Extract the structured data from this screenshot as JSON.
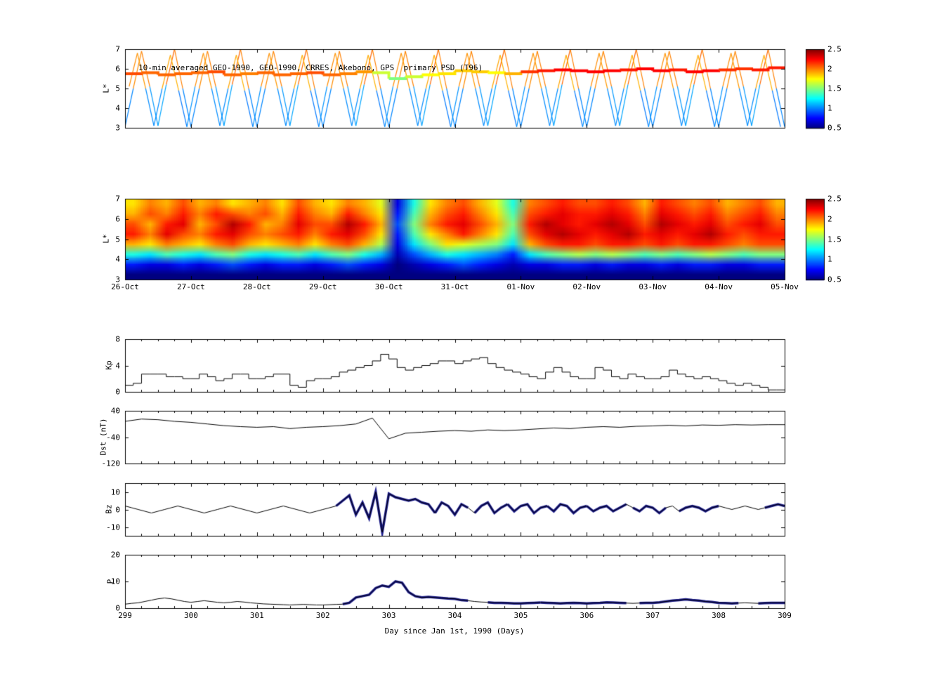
{
  "colors": {
    "axis": "#000000",
    "line": "#000000",
    "thick_line": "#1a1a8c",
    "background": "#ffffff"
  },
  "colorbar": {
    "ticks": [
      2.5,
      2,
      1.5,
      1,
      0.5
    ]
  },
  "xaxis": {
    "ticks": [
      299,
      300,
      301,
      302,
      303,
      304,
      305,
      306,
      307,
      308,
      309
    ],
    "label": "Day since Jan 1st, 1990 (Days)"
  },
  "chart_data": [
    {
      "id": "psd-track",
      "type": "line-colored",
      "title": "10-min averaged GEO-1990, GEO-1990, CRRES, Akebono, GPS  primary PSD (T96)",
      "ylabel": "L*",
      "xlim": [
        299,
        309
      ],
      "ylim": [
        3,
        7
      ],
      "yticks": [
        3,
        4,
        5,
        6,
        7
      ],
      "color_range": [
        0.5,
        2.5
      ],
      "series": [
        {
          "name": "orbit-track-1",
          "x0": 299,
          "dt": 0.125,
          "l": [
            3.05,
            5,
            6.9,
            5.1,
            3.1,
            5.2,
            7,
            5,
            3.05,
            5,
            6.9,
            5.1,
            3.1,
            5.2,
            7,
            5,
            3.05,
            5,
            6.9,
            5.1,
            3.1,
            5.2,
            7,
            5,
            3.05,
            5,
            6.9,
            5.1,
            3.1,
            5.2,
            7,
            5,
            3.05,
            5,
            6.9,
            5.1,
            3.1,
            5.2,
            7,
            5,
            3.05,
            5,
            6.9,
            5.1,
            3.1,
            5.2,
            7,
            5,
            3.05,
            5,
            6.9,
            5.1,
            3.1,
            5.2,
            7,
            5,
            3.05,
            5,
            6.9,
            5.1,
            3.1,
            5.2,
            7,
            5,
            3.05,
            5,
            6.9,
            5.1,
            3.1,
            5.2,
            7,
            5,
            3.05,
            5,
            6.9,
            5.1,
            3.1,
            5.2,
            7,
            5,
            3.05
          ]
        },
        {
          "name": "orbit-track-2",
          "x0": 299.0625,
          "dt": 0.125,
          "l": [
            5.1,
            6.8,
            5,
            3.1,
            5,
            6.7,
            4.9,
            3.05,
            5.1,
            6.8,
            5,
            3.1,
            5,
            6.7,
            4.9,
            3.05,
            5.1,
            6.8,
            5,
            3.1,
            5,
            6.7,
            4.9,
            3.05,
            5.1,
            6.8,
            5,
            3.1,
            5,
            6.7,
            4.9,
            3.05,
            5.1,
            6.8,
            5,
            3.1,
            5,
            6.7,
            4.9,
            3.05,
            5.1,
            6.8,
            5,
            3.1,
            5,
            6.7,
            4.9,
            3.05,
            5.1,
            6.8,
            5,
            3.1,
            5,
            6.7,
            4.9,
            3.05,
            5.1,
            6.8,
            5,
            3.1,
            5,
            6.7,
            4.9,
            3.05,
            5.1,
            6.8,
            5,
            3.1,
            5,
            6.7,
            4.9,
            3.05,
            5.1,
            6.8,
            5,
            3.1,
            5,
            6.7,
            4.9,
            3.05
          ]
        },
        {
          "name": "geo-track",
          "x0": 299,
          "dt": 0.25,
          "step": true,
          "lw": 4,
          "l": [
            5.75,
            5.8,
            5.7,
            5.75,
            5.8,
            5.85,
            5.7,
            5.75,
            5.8,
            5.7,
            5.75,
            5.8,
            5.7,
            5.75,
            5.85,
            5.8,
            5.5,
            5.6,
            5.7,
            5.75,
            5.9,
            5.85,
            5.8,
            5.75,
            5.85,
            5.9,
            5.95,
            5.9,
            5.85,
            5.9,
            5.95,
            6.0,
            5.9,
            5.95,
            5.85,
            5.9,
            5.95,
            6.0,
            5.95,
            6.05,
            6.0
          ],
          "psd": [
            2.1,
            2.1,
            2.0,
            2.1,
            2.0,
            2.1,
            2.1,
            2.0,
            2.0,
            2.1,
            2.0,
            2.1,
            2.1,
            2.0,
            2.0,
            1.9,
            1.4,
            1.6,
            1.7,
            1.8,
            1.8,
            1.9,
            1.8,
            1.7,
            2.1,
            2.2,
            2.2,
            2.3,
            2.2,
            2.3,
            2.2,
            2.2,
            2.3,
            2.2,
            2.2,
            2.3,
            2.2,
            2.1,
            2.2,
            2.2,
            2.2
          ]
        }
      ]
    },
    {
      "id": "psd-heatmap",
      "type": "heatmap",
      "ylabel": "L*",
      "xlim": [
        299,
        309
      ],
      "ylim": [
        3,
        7
      ],
      "yticks": [
        3,
        4,
        5,
        6,
        7
      ],
      "xticklabels": [
        "26-Oct",
        "27-Oct",
        "28-Oct",
        "29-Oct",
        "30-Oct",
        "31-Oct",
        "01-Nov",
        "02-Nov",
        "03-Nov",
        "04-Nov",
        "05-Nov"
      ],
      "color_range": [
        0.5,
        2.5
      ],
      "grid": {
        "x0": 299,
        "dx": 0.25,
        "y0": 3,
        "dy": 0.5,
        "rows_note": "rows bottom-up, L*=3..7, value = log10 PSD color scale 0.5-2.5",
        "rows": [
          [
            0.5,
            0.5,
            0.5,
            0.5,
            0.5,
            0.5,
            0.5,
            0.5,
            0.5,
            0.5,
            0.5,
            0.5,
            0.5,
            0.5,
            0.5,
            0.5,
            0.5,
            0.5,
            0.5,
            0.5,
            0.5,
            0.5,
            0.5,
            0.5,
            0.5,
            0.5,
            0.5,
            0.5,
            0.5,
            0.5,
            0.5,
            0.5,
            0.5,
            0.5,
            0.5,
            0.5,
            0.5,
            0.5,
            0.5,
            0.5
          ],
          [
            0.8,
            0.7,
            0.7,
            0.8,
            0.7,
            0.8,
            0.9,
            0.8,
            0.7,
            0.8,
            0.8,
            0.7,
            0.8,
            0.9,
            0.8,
            0.7,
            0.5,
            0.6,
            0.7,
            0.8,
            0.9,
            0.8,
            0.7,
            0.6,
            0.7,
            0.7,
            0.8,
            0.8,
            0.7,
            0.8,
            0.7,
            0.7,
            0.8,
            0.7,
            0.8,
            0.8,
            0.7,
            0.7,
            0.8,
            0.8
          ],
          [
            1.3,
            1.2,
            1.4,
            1.3,
            1.2,
            1.4,
            1.5,
            1.3,
            1.2,
            1.3,
            1.4,
            1.2,
            1.4,
            1.5,
            1.3,
            1.1,
            0.6,
            0.9,
            1.1,
            1.3,
            1.2,
            1.1,
            1.0,
            0.8,
            1.2,
            1.4,
            1.5,
            1.6,
            1.5,
            1.6,
            1.5,
            1.4,
            1.5,
            1.4,
            1.5,
            1.6,
            1.5,
            1.4,
            1.5,
            1.5
          ],
          [
            1.9,
            1.8,
            2.0,
            1.9,
            1.8,
            2.0,
            2.1,
            1.9,
            1.8,
            1.9,
            2.0,
            1.8,
            2.0,
            2.1,
            1.9,
            1.6,
            0.7,
            1.2,
            1.5,
            1.8,
            1.7,
            1.6,
            1.5,
            1.2,
            1.9,
            2.1,
            2.2,
            2.2,
            2.1,
            2.2,
            2.2,
            2.1,
            2.2,
            2.1,
            2.2,
            2.2,
            2.1,
            2.0,
            2.1,
            2.1
          ],
          [
            2.2,
            2.0,
            2.3,
            2.1,
            2.0,
            2.2,
            2.3,
            2.1,
            2.0,
            2.1,
            2.2,
            2.0,
            2.2,
            2.3,
            2.1,
            1.8,
            0.8,
            1.4,
            1.8,
            2.0,
            2.2,
            2.0,
            1.8,
            1.4,
            2.1,
            2.3,
            2.4,
            2.3,
            2.2,
            2.3,
            2.4,
            2.2,
            2.3,
            2.2,
            2.3,
            2.4,
            2.2,
            2.1,
            2.2,
            2.2
          ],
          [
            2.1,
            1.9,
            2.2,
            2.3,
            1.9,
            2.1,
            2.4,
            2.2,
            1.9,
            2.0,
            2.3,
            2.1,
            2.1,
            2.4,
            2.2,
            1.9,
            0.9,
            1.5,
            2.0,
            2.2,
            2.3,
            2.1,
            1.9,
            1.5,
            2.2,
            2.4,
            2.3,
            2.2,
            2.3,
            2.4,
            2.3,
            2.1,
            2.4,
            2.3,
            2.2,
            2.3,
            2.1,
            2.2,
            2.3,
            2.1
          ],
          [
            1.9,
            2.1,
            2.0,
            2.2,
            2.0,
            2.2,
            2.1,
            2.0,
            2.1,
            1.9,
            2.2,
            2.0,
            1.9,
            2.2,
            2.0,
            1.8,
            0.8,
            1.4,
            1.9,
            2.1,
            2.2,
            2.0,
            1.8,
            1.4,
            2.1,
            2.2,
            2.3,
            2.2,
            2.2,
            2.3,
            2.2,
            2.0,
            2.3,
            2.2,
            2.1,
            2.2,
            2.0,
            2.1,
            2.2,
            2.0
          ],
          [
            1.8,
            2.0,
            1.9,
            2.1,
            1.9,
            2.0,
            1.8,
            1.9,
            2.0,
            1.8,
            2.1,
            1.9,
            1.8,
            2.0,
            1.9,
            1.7,
            0.7,
            1.3,
            1.8,
            2.0,
            2.1,
            1.9,
            1.7,
            1.3,
            2.0,
            2.1,
            2.2,
            2.1,
            2.1,
            2.2,
            2.1,
            1.9,
            2.2,
            2.1,
            2.0,
            2.1,
            1.9,
            2.0,
            2.1,
            1.9
          ]
        ]
      }
    },
    {
      "id": "kp",
      "type": "line",
      "step": true,
      "ylabel": "Kp",
      "ylim": [
        0,
        8
      ],
      "yticks": [
        0,
        4,
        8
      ],
      "x0": 299,
      "dt": 0.125,
      "values": [
        1.0,
        1.3,
        2.7,
        2.7,
        2.7,
        2.3,
        2.3,
        2.0,
        2.0,
        2.7,
        2.3,
        1.7,
        2.0,
        2.7,
        2.7,
        2.0,
        2.0,
        2.3,
        2.7,
        2.7,
        1.0,
        0.7,
        1.7,
        2.0,
        2.0,
        2.3,
        3.0,
        3.3,
        3.7,
        4.0,
        4.7,
        5.7,
        5.0,
        3.7,
        3.3,
        3.7,
        4.0,
        4.3,
        4.7,
        4.7,
        4.3,
        4.7,
        5.0,
        5.2,
        4.3,
        3.7,
        3.3,
        3.0,
        2.7,
        2.3,
        2.0,
        3.0,
        3.7,
        3.0,
        2.3,
        2.0,
        2.0,
        3.7,
        3.3,
        2.3,
        2.0,
        2.7,
        2.3,
        2.0,
        2.0,
        2.3,
        3.3,
        2.7,
        2.3,
        2.0,
        2.3,
        2.0,
        1.7,
        1.3,
        1.0,
        1.3,
        1.0,
        0.7,
        0.3,
        0.3
      ]
    },
    {
      "id": "dst",
      "type": "line",
      "ylabel": "Dst (nT)",
      "ylim": [
        -120,
        40
      ],
      "yticks": [
        -120,
        -40,
        40
      ],
      "x0": 299,
      "dt": 0.25,
      "values": [
        8,
        15,
        13,
        8,
        5,
        0,
        -5,
        -8,
        -10,
        -8,
        -14,
        -10,
        -8,
        -5,
        0,
        18,
        -45,
        -28,
        -25,
        -22,
        -20,
        -22,
        -18,
        -20,
        -18,
        -15,
        -12,
        -14,
        -10,
        -8,
        -10,
        -7,
        -6,
        -4,
        -6,
        -3,
        -4,
        -2,
        -3,
        -2,
        -2
      ]
    },
    {
      "id": "bz",
      "type": "line",
      "ylabel": "Bz",
      "ylim": [
        -15,
        15
      ],
      "yticks": [
        -10,
        0,
        10
      ],
      "x0": 299,
      "dt": 0.1,
      "values": [
        2,
        1,
        0,
        -1,
        -2,
        -1,
        0,
        1,
        2,
        1,
        0,
        -1,
        -2,
        -1,
        0,
        1,
        2,
        1,
        0,
        -1,
        -2,
        -1,
        0,
        1,
        2,
        1,
        0,
        -1,
        -2,
        -1,
        0,
        1,
        2,
        5,
        8,
        -3,
        4,
        -5,
        10,
        -13,
        9,
        7,
        6,
        5,
        6,
        4,
        3,
        -2,
        4,
        2,
        -3,
        3,
        1,
        -2,
        2,
        4,
        -2,
        1,
        3,
        -1,
        2,
        3,
        -2,
        1,
        2,
        -1,
        3,
        2,
        -2,
        1,
        2,
        -1,
        1,
        2,
        -1,
        1,
        3,
        1,
        -1,
        2,
        1,
        -2,
        1,
        2,
        -1,
        1,
        2,
        1,
        -1,
        1,
        2,
        1,
        0,
        1,
        2,
        1,
        0,
        1,
        2,
        3,
        2
      ],
      "thick_ranges": [
        [
          302.3,
          303.6
        ],
        [
          303.8,
          304.15
        ],
        [
          304.35,
          304.75
        ],
        [
          304.9,
          305.35
        ],
        [
          305.5,
          305.9
        ],
        [
          306.1,
          306.5
        ],
        [
          306.8,
          307.15
        ],
        [
          307.5,
          307.95
        ],
        [
          308.8,
          309.0
        ]
      ]
    },
    {
      "id": "p",
      "type": "line",
      "ylabel": "P",
      "ylim": [
        0,
        20
      ],
      "yticks": [
        0,
        10,
        20
      ],
      "x0": 299,
      "dt": 0.1,
      "values": [
        1.5,
        1.8,
        2.0,
        2.5,
        3.0,
        3.5,
        3.8,
        3.5,
        3.0,
        2.5,
        2.2,
        2.5,
        2.8,
        2.5,
        2.2,
        2.0,
        2.2,
        2.5,
        2.3,
        2.0,
        1.8,
        1.6,
        1.5,
        1.4,
        1.3,
        1.2,
        1.3,
        1.4,
        1.3,
        1.2,
        1.2,
        1.3,
        1.4,
        1.5,
        2.0,
        4.0,
        4.5,
        5.0,
        7.5,
        8.5,
        8.0,
        10.0,
        9.5,
        6.0,
        4.5,
        4.0,
        4.2,
        4.0,
        3.8,
        3.6,
        3.5,
        3.0,
        2.8,
        2.5,
        2.3,
        2.2,
        2.0,
        2.0,
        1.9,
        1.8,
        1.8,
        1.9,
        2.0,
        2.1,
        2.0,
        1.9,
        1.8,
        1.9,
        2.0,
        1.9,
        1.8,
        1.9,
        2.0,
        2.2,
        2.1,
        2.0,
        1.9,
        1.8,
        1.9,
        2.0,
        2.0,
        2.2,
        2.5,
        2.8,
        3.0,
        3.3,
        3.0,
        2.8,
        2.5,
        2.3,
        2.0,
        1.9,
        1.8,
        1.9,
        2.0,
        1.9,
        1.8,
        1.9,
        2.0,
        2.0,
        2.0
      ],
      "thick_ranges": [
        [
          302.4,
          304.1
        ],
        [
          304.6,
          305.2
        ],
        [
          305.4,
          306.5
        ],
        [
          306.9,
          308.2
        ],
        [
          308.7,
          309.0
        ]
      ]
    }
  ]
}
